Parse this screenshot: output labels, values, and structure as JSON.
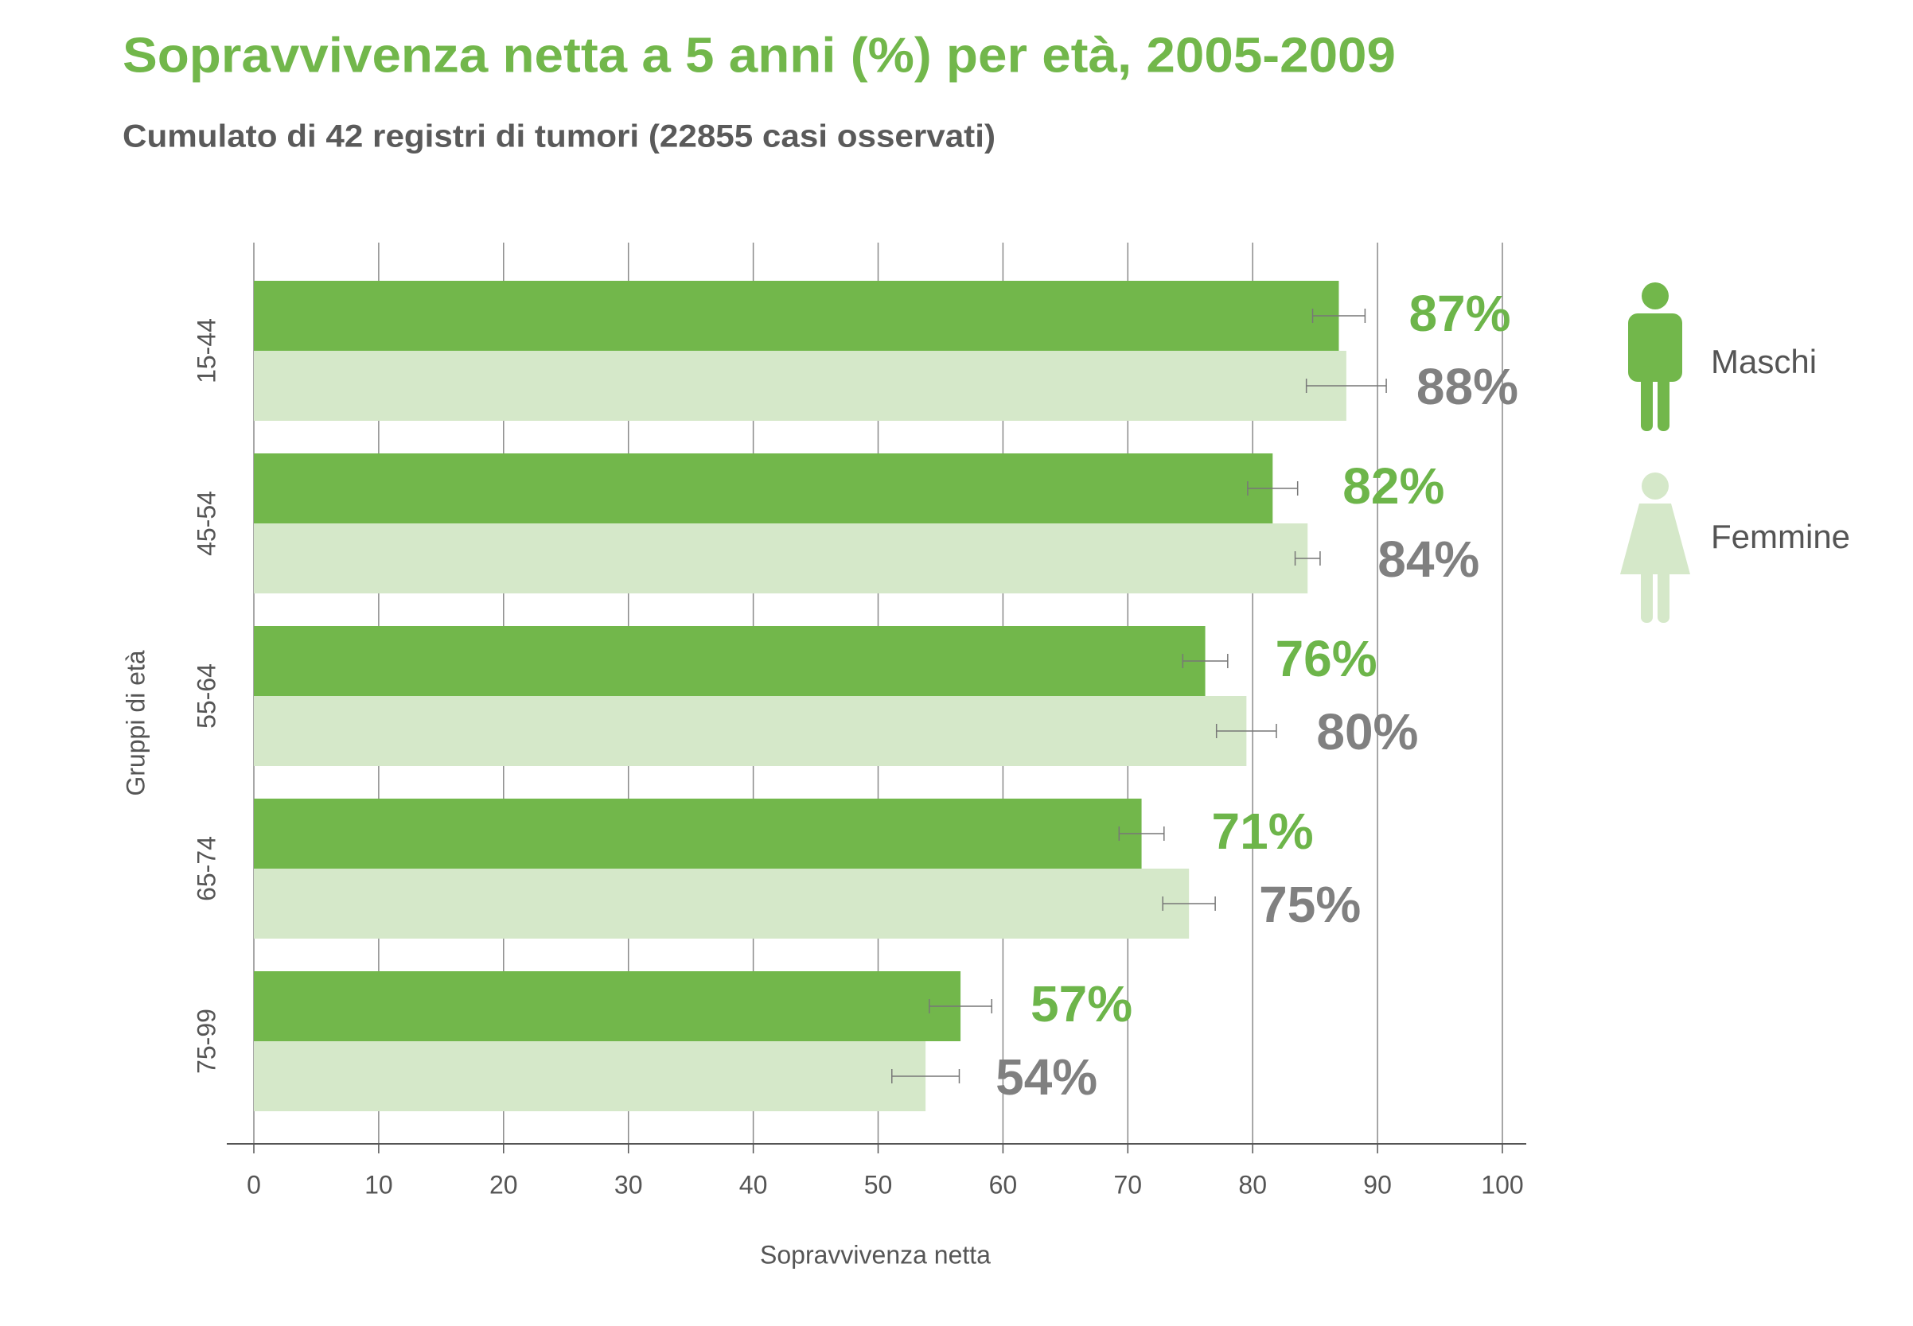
{
  "chart_data": {
    "type": "bar",
    "orientation": "horizontal",
    "title": "Sopravvivenza netta a 5 anni (%) per età, 2005-2009",
    "subtitle": "Cumulato di 42 registri di tumori (22855 casi osservati)",
    "x_label": "Sopravvivenza netta",
    "y_label": "Gruppi di età",
    "categories": [
      "15-44",
      "45-54",
      "55-64",
      "65-74",
      "75-99"
    ],
    "series": [
      {
        "name": "Maschi",
        "color": "#72b74b",
        "label_color": "#6db54a",
        "values": [
          86.9,
          81.6,
          76.2,
          71.1,
          56.6
        ],
        "errors": [
          2.1,
          2.0,
          1.8,
          1.8,
          2.5
        ],
        "value_labels": [
          "87%",
          "82%",
          "76%",
          "71%",
          "57%"
        ]
      },
      {
        "name": "Femmine",
        "color": "#d5e8c9",
        "label_color": "#808080",
        "values": [
          87.5,
          84.4,
          79.5,
          74.9,
          53.8
        ],
        "errors": [
          3.2,
          1.0,
          2.4,
          2.1,
          2.7
        ],
        "value_labels": [
          "88%",
          "84%",
          "80%",
          "75%",
          "54%"
        ]
      }
    ],
    "xlim": [
      0,
      100
    ],
    "xticks": [
      0,
      10,
      20,
      30,
      40,
      50,
      60,
      70,
      80,
      90,
      100
    ],
    "grid": true
  }
}
